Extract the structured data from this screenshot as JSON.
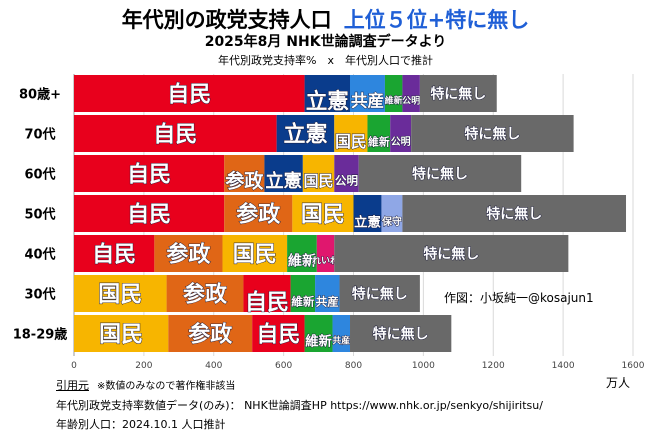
{
  "header": {
    "title_main": "年代別の政党支持人口",
    "title_accent": "上位５位+特に無し",
    "subtitle": "2025年8月 NHK世論調査データより",
    "caption": "年代別政党支持率%　x　年代別人口で推計"
  },
  "credit": "作図：小坂純一@kosajun1",
  "unit": "万人",
  "footer": {
    "source_label": "引用元",
    "note": "※数値のみなので著作権非該当",
    "line1": "年代別政党支持率数値データ(のみ)：  NHK世論調査HP   https://www.nhk.or.jp/senkyo/shijiritsu/",
    "line2": "年齢別人口：2024.10.1 人口推計"
  },
  "colors": {
    "自民": "#e8001c",
    "立憲": "#0a3c8c",
    "国民": "#f7b500",
    "参政": "#e06616",
    "公明": "#6a2c9a",
    "共産": "#2e86de",
    "維新": "#1aa531",
    "保守": "#8fa7e6",
    "れいわ": "#e0176e",
    "特に無し": "#696969"
  },
  "chart_data": {
    "type": "bar",
    "orientation": "horizontal",
    "stacked": true,
    "categories": [
      "80歳+",
      "70代",
      "60代",
      "50代",
      "40代",
      "30代",
      "18-29歳"
    ],
    "xlim": [
      0,
      1600
    ],
    "xticks": [
      0,
      200,
      400,
      600,
      800,
      1000,
      1200,
      1400,
      1600
    ],
    "xunit": "万人",
    "grid": true,
    "rows": [
      {
        "category": "80歳+",
        "segments": [
          {
            "party": "自民",
            "value": 660
          },
          {
            "party": "立憲",
            "value": 130
          },
          {
            "party": "共産",
            "value": 100
          },
          {
            "party": "維新",
            "value": 50
          },
          {
            "party": "公明",
            "value": 50
          },
          {
            "party": "特に無し",
            "value": 220
          }
        ]
      },
      {
        "category": "70代",
        "segments": [
          {
            "party": "自民",
            "value": 580
          },
          {
            "party": "立憲",
            "value": 165
          },
          {
            "party": "国民",
            "value": 95
          },
          {
            "party": "維新",
            "value": 65
          },
          {
            "party": "公明",
            "value": 60
          },
          {
            "party": "特に無し",
            "value": 465
          }
        ]
      },
      {
        "category": "60代",
        "segments": [
          {
            "party": "自民",
            "value": 430
          },
          {
            "party": "参政",
            "value": 115
          },
          {
            "party": "立憲",
            "value": 110
          },
          {
            "party": "国民",
            "value": 90
          },
          {
            "party": "公明",
            "value": 70
          },
          {
            "party": "特に無し",
            "value": 465
          }
        ]
      },
      {
        "category": "50代",
        "segments": [
          {
            "party": "自民",
            "value": 430
          },
          {
            "party": "参政",
            "value": 195
          },
          {
            "party": "国民",
            "value": 175
          },
          {
            "party": "立憲",
            "value": 80
          },
          {
            "party": "保守",
            "value": 60
          },
          {
            "party": "特に無し",
            "value": 640
          }
        ]
      },
      {
        "category": "40代",
        "segments": [
          {
            "party": "自民",
            "value": 230
          },
          {
            "party": "参政",
            "value": 195
          },
          {
            "party": "国民",
            "value": 185
          },
          {
            "party": "維新",
            "value": 85
          },
          {
            "party": "れいわ",
            "value": 50
          },
          {
            "party": "特に無し",
            "value": 670
          }
        ]
      },
      {
        "category": "30代",
        "segments": [
          {
            "party": "国民",
            "value": 265
          },
          {
            "party": "参政",
            "value": 220
          },
          {
            "party": "自民",
            "value": 135
          },
          {
            "party": "維新",
            "value": 70
          },
          {
            "party": "共産",
            "value": 70
          },
          {
            "party": "特に無し",
            "value": 230
          }
        ]
      },
      {
        "category": "18-29歳",
        "segments": [
          {
            "party": "国民",
            "value": 270
          },
          {
            "party": "参政",
            "value": 240
          },
          {
            "party": "自民",
            "value": 150
          },
          {
            "party": "維新",
            "value": 80
          },
          {
            "party": "共産",
            "value": 50
          },
          {
            "party": "特に無し",
            "value": 290
          }
        ]
      }
    ]
  }
}
